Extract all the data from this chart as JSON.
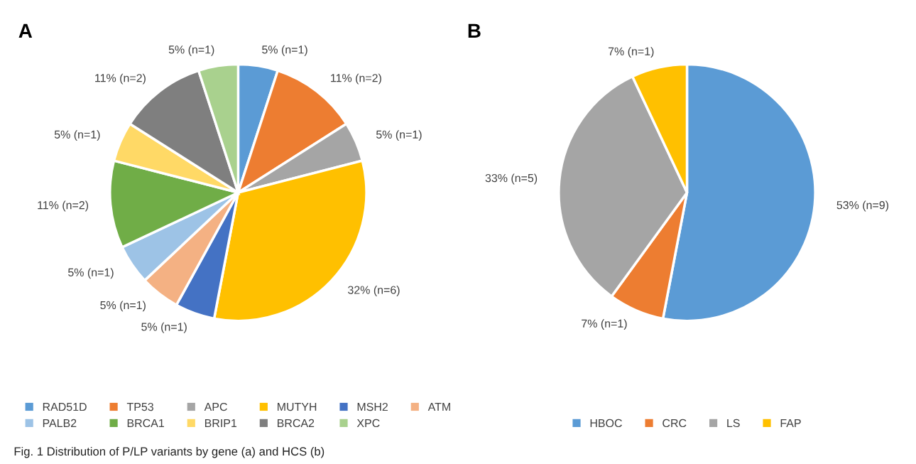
{
  "chart_data": [
    {
      "type": "pie",
      "title": "A",
      "categories": [
        "RAD51D",
        "TP53",
        "APC",
        "MUTYH",
        "MSH2",
        "ATM",
        "PALB2",
        "BRCA1",
        "BRIP1",
        "BRCA2",
        "XPC"
      ],
      "values": [
        5,
        11,
        5,
        32,
        5,
        5,
        5,
        11,
        5,
        11,
        5
      ],
      "value_labels": [
        "5% (n=1)",
        "11% (n=2)",
        "5% (n=1)",
        "32% (n=6)",
        "5% (n=1)",
        "5% (n=1)",
        "5% (n=1)",
        "11% (n=2)",
        "5% (n=1)",
        "11% (n=2)",
        "5% (n=1)"
      ],
      "colors": [
        "#5b9bd5",
        "#ed7d31",
        "#a5a5a5",
        "#ffc000",
        "#4472c4",
        "#f4b183",
        "#9dc3e6",
        "#70ad47",
        "#ffd966",
        "#7f7f7f",
        "#a9d18e"
      ],
      "legend": "bottom",
      "annotations": [
        "Fig. 1 Distribution of P/LP variants by gene (a) and HCS (b)"
      ]
    },
    {
      "type": "pie",
      "title": "B",
      "categories": [
        "HBOC",
        "CRC",
        "LS",
        "FAP"
      ],
      "values": [
        53,
        7,
        33,
        7
      ],
      "value_labels": [
        "53% (n=9)",
        "7% (n=1)",
        "33% (n=5)",
        "7% (n=1)"
      ],
      "colors": [
        "#5b9bd5",
        "#ed7d31",
        "#a5a5a5",
        "#ffc000"
      ],
      "legend": "bottom"
    }
  ]
}
